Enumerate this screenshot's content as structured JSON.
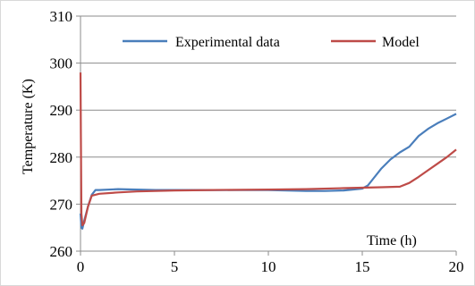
{
  "chart_data": {
    "type": "line",
    "title": "",
    "xlabel": "Time (h)",
    "ylabel": "Temperature (K)",
    "xlim": [
      0,
      20
    ],
    "ylim": [
      260,
      310
    ],
    "xticks": [
      0,
      5,
      10,
      15,
      20
    ],
    "yticks": [
      260,
      270,
      280,
      290,
      300,
      310
    ],
    "grid": "horizontal",
    "legend_position": "top-right",
    "series": [
      {
        "name": "Experimental data",
        "color": "#4a7ebb",
        "x": [
          0,
          0.05,
          0.1,
          0.2,
          0.4,
          0.6,
          0.8,
          1,
          2,
          3,
          4,
          5,
          6,
          7,
          8,
          9,
          10,
          11,
          12,
          13,
          14,
          15,
          15.3,
          15.6,
          16,
          16.5,
          17,
          17.5,
          18,
          18.5,
          19,
          19.5,
          20
        ],
        "y": [
          268,
          265,
          264.8,
          266.5,
          269.5,
          272,
          273,
          273,
          273.2,
          273.1,
          273,
          273,
          273,
          273,
          273,
          273,
          273,
          272.9,
          272.8,
          272.8,
          272.9,
          273.3,
          274,
          275.5,
          277.5,
          279.5,
          281,
          282.2,
          284.5,
          286,
          287.2,
          288.2,
          289.2
        ]
      },
      {
        "name": "Model",
        "color": "#be4b48",
        "x": [
          0,
          0.02,
          0.05,
          0.1,
          0.2,
          0.4,
          0.6,
          1,
          2,
          3,
          5,
          7,
          10,
          12,
          14,
          16,
          17,
          17.5,
          18,
          18.5,
          19,
          19.5,
          20
        ],
        "y": [
          298,
          285,
          268,
          265.5,
          266,
          269.5,
          271.8,
          272.2,
          272.5,
          272.7,
          272.9,
          273,
          273.1,
          273.2,
          273.4,
          273.6,
          273.7,
          274.5,
          275.8,
          277.2,
          278.6,
          280,
          281.6
        ]
      }
    ]
  }
}
